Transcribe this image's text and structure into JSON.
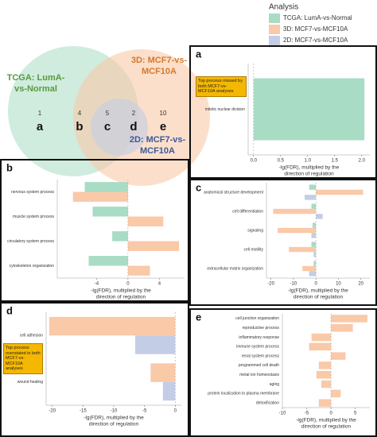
{
  "legend": {
    "title": "Analysis",
    "items": [
      {
        "name": "TCGA: LumA-vs-Normal",
        "color": "#a8dcc4"
      },
      {
        "name": "3D: MCF7-vs-MCF10A",
        "color": "#f9c9a8"
      },
      {
        "name": "2D: MCF7-vs-MCF10A",
        "color": "#c3cde6"
      }
    ]
  },
  "chart_data": [
    {
      "type": "venn",
      "sets": [
        {
          "name": [
            "TCGA: LumA-",
            "vs-Normal"
          ],
          "color": "#a8dcc4",
          "text_color": "#5a9a3a"
        },
        {
          "name": [
            "3D: MCF7-vs-",
            "MCF10A"
          ],
          "color": "#f9c9a8",
          "text_color": "#d8782a"
        },
        {
          "name": [
            "2D: MCF7-vs-",
            "MCF10A"
          ],
          "color": "#c3cde6",
          "text_color": "#3a5a9a"
        }
      ],
      "regions": [
        "a",
        "b",
        "c",
        "d",
        "e"
      ],
      "values": [
        1,
        4,
        5,
        2,
        10
      ]
    },
    {
      "type": "bar",
      "label": "a",
      "categories": [
        "mitotic nuclear division"
      ],
      "series": [
        {
          "color": "#a8dcc4",
          "values": [
            2.05
          ]
        }
      ],
      "xlim": [
        -0.1,
        2.15
      ],
      "xticks": [
        {
          "value": 0,
          "label": "0.0"
        },
        0.5,
        {
          "value": 1,
          "label": "1.0"
        },
        1.5,
        {
          "value": 2,
          "label": "2.0"
        }
      ],
      "xlabel": [
        "-lg(FDR), multiplied by the",
        "direction of regulation"
      ],
      "annotation": "Top process missed by both MCF7-vs-MCF10A analyses"
    },
    {
      "type": "bar",
      "label": "b",
      "categories": [
        "nervous system process",
        "muscle system process",
        "circulatory system process",
        "cytoskeleton organization"
      ],
      "series": [
        {
          "color": "#a8dcc4",
          "values": [
            -5.5,
            -4.5,
            -2,
            -5
          ]
        },
        {
          "color": "#f9c9a8",
          "values": [
            -7,
            4.5,
            6.5,
            2.8
          ]
        }
      ],
      "xlim": [
        -9,
        7.2
      ],
      "xticks": [
        -4,
        0,
        4
      ],
      "xlabel": [
        "-lg(FDR), multiplied by the",
        "direction of regulation"
      ]
    },
    {
      "type": "bar",
      "label": "c",
      "categories": [
        "anatomical structure development",
        "cell differentiation",
        "signaling",
        "cell motility",
        "extracellular matrix organization"
      ],
      "series": [
        {
          "color": "#a8dcc4",
          "values": [
            -3,
            -2,
            -1.5,
            -2,
            -1
          ]
        },
        {
          "color": "#f9c9a8",
          "values": [
            21,
            -19,
            -17,
            -12,
            -6
          ]
        },
        {
          "color": "#c3cde6",
          "values": [
            -5,
            3,
            -2,
            -1,
            -3
          ]
        }
      ],
      "xlim": [
        -22,
        24
      ],
      "xticks": [
        -20,
        -10,
        0,
        10,
        20
      ],
      "xlabel": [
        "-lg(FDR), multiplied by the",
        "direction of regulation"
      ]
    },
    {
      "type": "bar",
      "label": "d",
      "categories": [
        "cell adhesion",
        "wound healing"
      ],
      "series": [
        {
          "color": "#f9c9a8",
          "values": [
            -20.5,
            -4
          ]
        },
        {
          "color": "#c3cde6",
          "values": [
            -6.5,
            -2
          ]
        }
      ],
      "xlim": [
        -21,
        1
      ],
      "xticks": [
        -20,
        -15,
        -10,
        -5,
        0
      ],
      "xlabel": [
        "-lg(FDR), multiplied by the",
        "direction of regulation"
      ],
      "annotation": "Top process overstated in both MCF7-vs-MCF10A analyses"
    },
    {
      "type": "bar",
      "label": "e",
      "categories": [
        "cell junction organization",
        "reproductive process",
        "inflammatory response",
        "immune system process",
        "renal system process",
        "programmed cell death",
        "metal ion homeostasis",
        "aging",
        "protein localization to plasma membrane",
        "detoxification"
      ],
      "series": [
        {
          "color": "#f9c9a8",
          "values": [
            7.5,
            4.5,
            -4,
            -4.5,
            3,
            -2.5,
            -3,
            -2,
            2,
            -2.5
          ]
        }
      ],
      "xlim": [
        -10,
        8
      ],
      "xticks": [
        -10,
        -5,
        0,
        5
      ],
      "xlabel": [
        "-lg(FDR), multiplied by the",
        "direction of regulation"
      ]
    }
  ]
}
